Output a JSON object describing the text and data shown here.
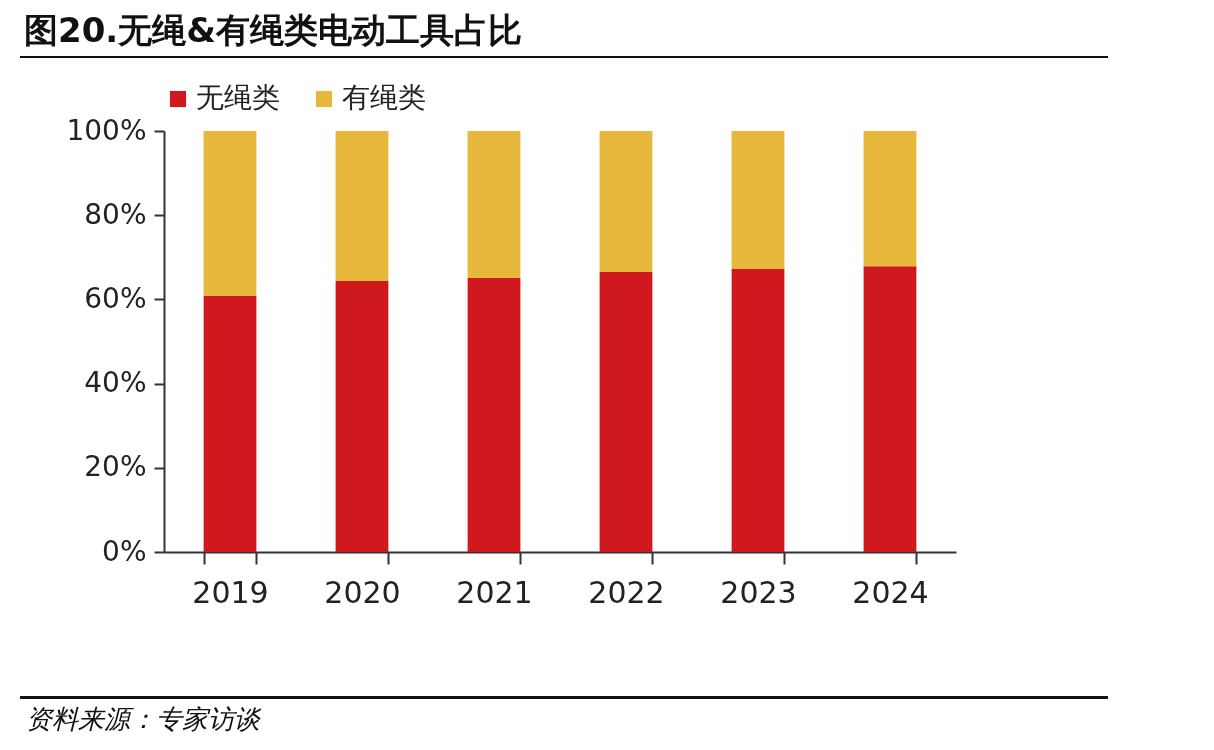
{
  "chart_data": {
    "type": "bar",
    "title": "图20.无绳&有绳类电动工具占比",
    "stacked": true,
    "legend": "top",
    "categories": [
      "2019",
      "2020",
      "2021",
      "2022",
      "2023",
      "2024"
    ],
    "series": [
      {
        "name": "无绳类",
        "color": "#d0191f",
        "values": [
          60.8,
          64.4,
          65.1,
          66.5,
          67.2,
          67.9
        ]
      },
      {
        "name": "有绳类",
        "color": "#e8b83c",
        "values": [
          39.2,
          35.6,
          34.9,
          33.5,
          32.8,
          32.1
        ]
      }
    ],
    "ylim": [
      0,
      100
    ],
    "yticks": [
      {
        "value": 0,
        "label": "0%"
      },
      {
        "value": 20,
        "label": "20%"
      },
      {
        "value": 40,
        "label": "40%"
      },
      {
        "value": 60,
        "label": "60%"
      },
      {
        "value": 80,
        "label": "80%"
      },
      {
        "value": 100,
        "label": "100%"
      }
    ],
    "grid": false,
    "annotations": [
      "资料来源：专家访谈"
    ]
  }
}
